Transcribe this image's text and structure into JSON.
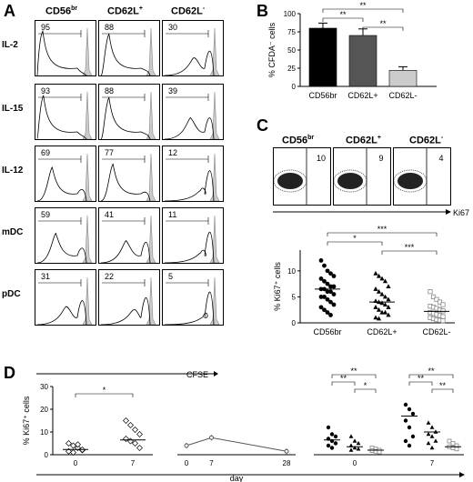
{
  "panelA": {
    "letter": "A",
    "columns": [
      "CD56br",
      "CD62L+",
      "CD62L-"
    ],
    "rows": [
      {
        "label": "IL-2",
        "percents": [
          "95",
          "88",
          "30"
        ]
      },
      {
        "label": "IL-15",
        "percents": [
          "93",
          "88",
          "39"
        ]
      },
      {
        "label": "IL-12",
        "percents": [
          "69",
          "77",
          "12"
        ]
      },
      {
        "label": "mDC",
        "percents": [
          "59",
          "41",
          "11"
        ]
      },
      {
        "label": "pDC",
        "percents": [
          "31",
          "22",
          "5"
        ]
      }
    ],
    "xlabel": "CFSE"
  },
  "panelB": {
    "letter": "B",
    "ylabel": "% CFDA⁻ cells",
    "chart_data": {
      "type": "bar",
      "categories": [
        "CD56br",
        "CD62L+",
        "CD62L-"
      ],
      "values": [
        80,
        70,
        22
      ],
      "errors": [
        7,
        9,
        5
      ],
      "colors": [
        "#000000",
        "#555555",
        "#cccccc"
      ],
      "ylim": [
        0,
        100
      ],
      "yticks": [
        "0",
        "25",
        "50",
        "75",
        "100"
      ],
      "significance": [
        "**",
        "**",
        "**"
      ]
    }
  },
  "panelC": {
    "letter": "C",
    "dot_headers": [
      "CD56br",
      "CD62L+",
      "CD62L-"
    ],
    "dot_values": [
      "10",
      "9",
      "4"
    ],
    "dot_xlabel": "Ki67",
    "ylabel": "% Ki67⁺ cells",
    "chart_data": {
      "type": "scatter",
      "categories": [
        "CD56br",
        "CD62L+",
        "CD62L-"
      ],
      "medians": [
        6.5,
        4.0,
        2.2
      ],
      "ylim": [
        0,
        14
      ],
      "yticks": [
        "0",
        "5",
        "10"
      ],
      "significance": [
        "*",
        "***",
        "***"
      ]
    }
  },
  "panelD": {
    "letter": "D",
    "ylabel": "% Ki67⁺ cells",
    "yticks": [
      "0",
      "10",
      "20",
      "30"
    ],
    "xlabel": "day",
    "plot1": {
      "xticks": [
        "0",
        "7"
      ],
      "significance": "*"
    },
    "plot2": {
      "xticks": [
        "0",
        "7",
        "28"
      ]
    },
    "plot3": {
      "xticks": [
        "0",
        "7"
      ],
      "significance": [
        "**",
        "**",
        "*",
        "**",
        "**",
        "**"
      ]
    }
  }
}
